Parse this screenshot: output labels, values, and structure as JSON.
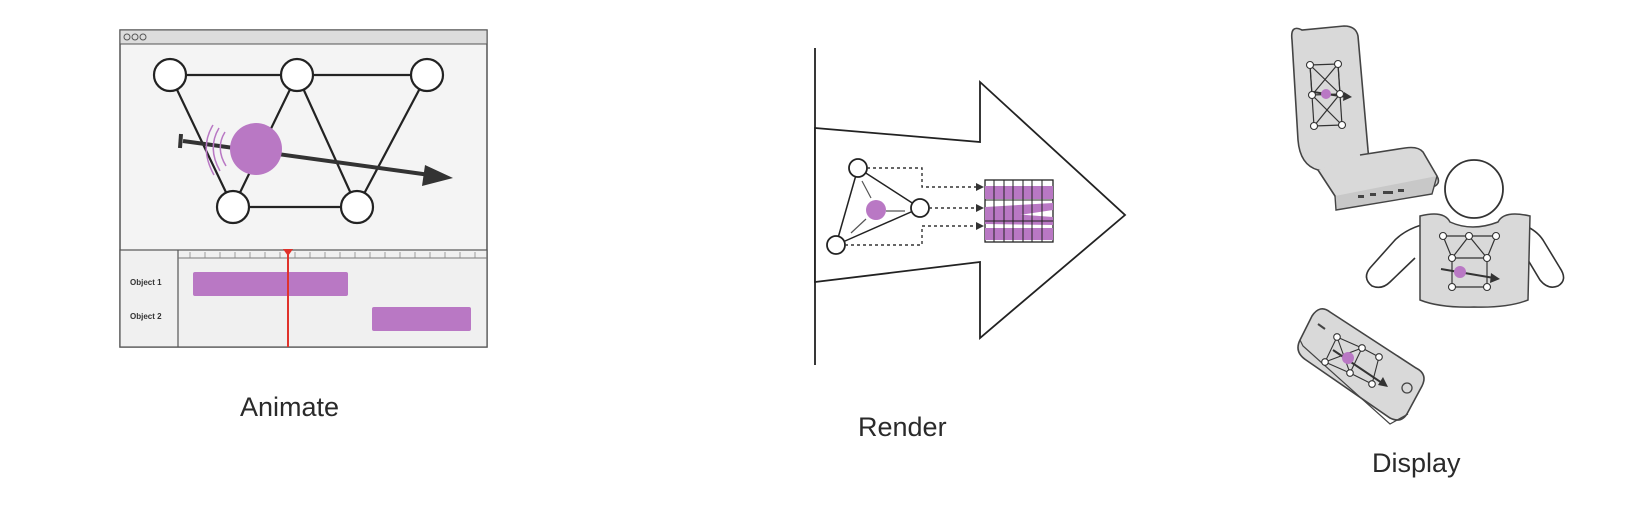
{
  "captions": {
    "animate": "Animate",
    "render": "Render",
    "display": "Display"
  },
  "timeline": {
    "tracks": [
      "Object 1",
      "Object 2"
    ]
  },
  "colors": {
    "accent": "#b978c4",
    "playhead": "#e0322b",
    "line": "#222222",
    "device_fill": "#d9d9d9"
  },
  "icons": [
    "graph-node-icon",
    "motion-arrow-icon",
    "car-seat-icon",
    "vest-icon",
    "phone-icon"
  ]
}
